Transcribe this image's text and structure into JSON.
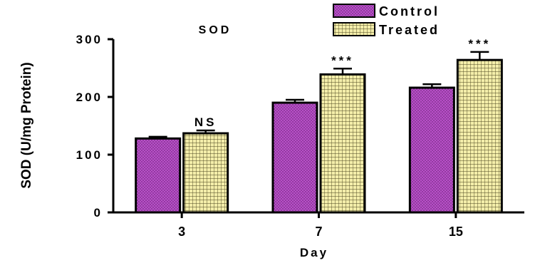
{
  "chart_data": {
    "type": "bar",
    "title": "SOD",
    "xlabel": "Day",
    "ylabel": "SOD (U/mg Protein)",
    "ylim": [
      0,
      300
    ],
    "yticks": [
      0,
      100,
      200,
      300
    ],
    "categories": [
      "3",
      "7",
      "15"
    ],
    "series": [
      {
        "name": "Control",
        "values": [
          128,
          190,
          216
        ],
        "errors": [
          3,
          5,
          6
        ],
        "color": "#b84fc8",
        "pattern": "dots"
      },
      {
        "name": "Treated",
        "values": [
          137,
          239,
          264
        ],
        "errors": [
          5,
          10,
          14
        ],
        "color": "#f4eeaa",
        "pattern": "grid"
      }
    ],
    "annotations": [
      "NS",
      "***",
      "***"
    ],
    "legend_position": "top-right",
    "grid": false
  }
}
